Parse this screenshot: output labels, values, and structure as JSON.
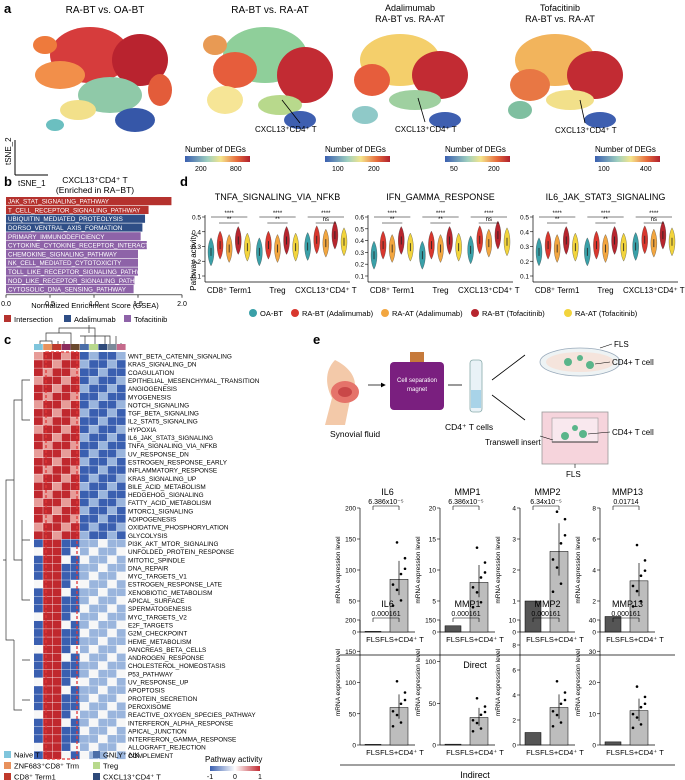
{
  "panel_labels": [
    "a",
    "b",
    "c",
    "d",
    "e"
  ],
  "panel_a": {
    "plots": [
      {
        "title1": "RA-BT vs. OA-BT",
        "title2": "",
        "annotation": "",
        "legend_title": "",
        "ticks": []
      },
      {
        "title1": "RA-BT vs. RA-AT",
        "title2": "",
        "annotation": "CXCL13⁺CD4⁺ T",
        "legend_title": "Number of DEGs",
        "ticks": [
          "200",
          "800"
        ]
      },
      {
        "title1": "Adalimumab",
        "title2": "RA-BT vs. RA-AT",
        "annotation": "CXCL13⁺CD4⁺ T",
        "legend_title": "Number of DEGs",
        "ticks": [
          "100",
          "200"
        ]
      },
      {
        "title1": "Tofacitinib",
        "title2": "RA-BT vs. RA-AT",
        "annotation": "CXCL13⁺CD4⁺ T",
        "legend_title": "Number of DEGs",
        "ticks": [
          "50",
          "200"
        ]
      }
    ],
    "extra_annotation": "CXCL13⁺CD4⁺ T",
    "extra_legend_title": "Number of DEGs",
    "extra_ticks": [
      "100",
      "400"
    ],
    "axis_y": "tSNE_2",
    "axis_x": "tSNE_1"
  },
  "panel_b": {
    "title_line1": "CXCL13⁺CD4⁺ T",
    "title_line2": "(Enriched in RA−BT)",
    "xlabel": "Normalized Enrichment Score (GSEA)",
    "legend": [
      {
        "label": "Intersection",
        "color": "#b5322e"
      },
      {
        "label": "Adalimumab",
        "color": "#2f4e86"
      },
      {
        "label": "Tofacitinib",
        "color": "#8e63a8"
      }
    ]
  },
  "panel_c": {
    "pathways": [
      "WNT_BETA_CATENIN_SIGNALING",
      "KRAS_SIGNALING_DN",
      "COAGULATION",
      "EPITHELIAL_MESENCHYMAL_TRANSITION",
      "ANGIOGENESIS",
      "MYOGENESIS",
      "NOTCH_SIGNALING",
      "TGF_BETA_SIGNALING",
      "IL2_STAT5_SIGNALING",
      "HYPOXIA",
      "IL6_JAK_STAT3_SIGNALING",
      "TNFA_SIGNALING_VIA_NFKB",
      "UV_RESPONSE_DN",
      "ESTROGEN_RESPONSE_EARLY",
      "INFLAMMATORY_RESPONSE",
      "KRAS_SIGNALING_UP",
      "BILE_ACID_METABOLISM",
      "HEDGEHOG_SIGNALING",
      "FATTY_ACID_METABOLISM",
      "MTORC1_SIGNALING",
      "ADIPOGENESIS",
      "OXIDATIVE_PHOSPHORYLATION",
      "GLYCOLYSIS",
      "PI3K_AKT_MTOR_SIGNALING",
      "UNFOLDED_PROTEIN_RESPONSE",
      "MITOTIC_SPINDLE",
      "DNA_REPAIR",
      "MYC_TARGETS_V1",
      "ESTROGEN_RESPONSE_LATE",
      "XENOBIOTIC_METABOLISM",
      "APICAL_SURFACE",
      "SPERMATOGENESIS",
      "MYC_TARGETS_V2",
      "E2F_TARGETS",
      "G2M_CHECKPOINT",
      "HEME_METABOLISM",
      "PANCREAS_BETA_CELLS",
      "ANDROGEN_RESPONSE",
      "CHOLESTEROL_HOMEOSTASIS",
      "P53_PATHWAY",
      "UV_RESPONSE_UP",
      "APOPTOSIS",
      "PROTEIN_SECRETION",
      "PEROXISOME",
      "REACTIVE_OXYGEN_SPECIES_PATHWAY",
      "INTERFERON_ALPHA_RESPONSE",
      "APICAL_JUNCTION",
      "INTERFERON_GAMMA_RESPONSE",
      "ALLOGRAFT_REJECTION",
      "COMPLEMENT"
    ],
    "celltypes": [
      {
        "label": "Naive T",
        "color": "#7fc5dc"
      },
      {
        "label": "ZNF683⁺CD8⁺ Trm",
        "color": "#e8915c"
      },
      {
        "label": "CD8⁺ Term1",
        "color": "#c0392b"
      },
      {
        "label": "CD8⁺ Tem2",
        "color": "#8b2c5d"
      },
      {
        "label": "NKT",
        "color": "#6b4a2f"
      },
      {
        "label": "GNLY⁺ NK",
        "color": "#4b6ea8"
      },
      {
        "label": "Treg",
        "color": "#b8d98c"
      },
      {
        "label": "CXCL13⁺CD4⁺ T",
        "color": "#2e4a7a"
      },
      {
        "label": "Proliferating CD8⁺ T",
        "color": "#7b8a9a"
      },
      {
        "label": "Proliferating NK",
        "color": "#c56a8b"
      }
    ],
    "legend_title": "Pathway activity",
    "legend_ticks": [
      "-1",
      "0",
      "1"
    ]
  },
  "panel_d": {
    "ylabel": "Pathway activity",
    "plots": [
      {
        "title": "TNFA_SIGNALING_VIA_NFKB",
        "yticks": [
          "0.1",
          "0.2",
          "0.3",
          "0.4",
          "0.5"
        ]
      },
      {
        "title": "IFN_GAMMA_RESPONSE",
        "yticks": [
          "0.1",
          "0.2",
          "0.3",
          "0.4",
          "0.5",
          "0.6"
        ]
      },
      {
        "title": "IL6_JAK_STAT3_SIGNALING",
        "yticks": [
          "0.1",
          "0.2",
          "0.3",
          "0.4",
          "0.5"
        ]
      }
    ],
    "xcats": [
      "CD8⁺ Term1",
      "Treg",
      "CXCL13⁺CD4⁺ T"
    ],
    "sig": {
      "ns": "ns",
      "star2": "**",
      "star4": "****"
    },
    "groups": [
      {
        "label": "OA-BT",
        "color": "#3aa0a8"
      },
      {
        "label": "RA-BT (Adalimumab)",
        "color": "#d8372e"
      },
      {
        "label": "RA-AT (Adalimumab)",
        "color": "#f2a640"
      },
      {
        "label": "RA-BT (Tofacitinib)",
        "color": "#b6252e"
      },
      {
        "label": "RA-AT (Tofacitinib)",
        "color": "#f2d43c"
      }
    ]
  },
  "panel_e": {
    "schematic": {
      "synovial_fluid": "Synovial fluid",
      "magnet_line1": "Cell separation",
      "magnet_line2": "magnet",
      "cd4_cells": "CD4⁺ T cells",
      "fls": "FLS",
      "cd4_cell_top": "CD4+ T cell",
      "transwell": "Transwell insert",
      "cd4_cell_bottom": "CD4+ T cell",
      "fls_bottom": "FLS"
    },
    "ylabel": "mRNA expression level",
    "xcats": [
      "FLS",
      "FLS+CD4⁺ T"
    ],
    "direct_label": "Direct",
    "indirect_label": "Indirect",
    "direct": [
      {
        "gene": "IL6",
        "pvalue": "6.386x10⁻⁵",
        "yticks": [
          "0",
          "50",
          "100",
          "150",
          "200"
        ]
      },
      {
        "gene": "MMP1",
        "pvalue": "6.386x10⁻⁵",
        "yticks": [
          "0",
          "5",
          "10",
          "15",
          "20"
        ]
      },
      {
        "gene": "MMP2",
        "pvalue": "6.34x10⁻⁵",
        "yticks": [
          "0",
          "1",
          "2",
          "3",
          "4"
        ]
      },
      {
        "gene": "MMP13",
        "pvalue": "0.01714",
        "yticks": [
          "0",
          "2",
          "4",
          "6",
          "8"
        ]
      }
    ],
    "indirect": [
      {
        "gene": "IL6",
        "pvalue": "0.000161",
        "yticks": [
          "0",
          "50",
          "100",
          "150",
          "200"
        ]
      },
      {
        "gene": "MMP1",
        "pvalue": "0.000161",
        "yticks": [
          "0",
          "50",
          "100",
          "150"
        ]
      },
      {
        "gene": "MMP2",
        "pvalue": "0.000161",
        "yticks": [
          "0",
          "2",
          "4",
          "6",
          "8",
          "10"
        ]
      },
      {
        "gene": "MMP13",
        "pvalue": "0.000161",
        "yticks": [
          "0",
          "10",
          "20",
          "30",
          "40"
        ]
      }
    ]
  },
  "chart_data": [
    {
      "type": "bar",
      "panel": "b",
      "orientation": "horizontal",
      "title": "CXCL13⁺CD4⁺ T (Enriched in RA−BT)",
      "xlabel": "Normalized Enrichment Score (GSEA)",
      "xlim": [
        0,
        2.0
      ],
      "xticks": [
        "0.0",
        "0.5",
        "1.0",
        "1.5",
        "2.0"
      ],
      "categories": [
        "JAK_STAT_SIGNALING_PATHWAY",
        "T_CELL_RECEPTOR_SIGNALING_PATHWAY",
        "UBIQUITIN_MEDIATED_PROTEOLYSIS",
        "DORSO_VENTRAL_AXIS_FORMATION",
        "PRIMARY_IMMUNODEFICIENCY",
        "CYTOKINE_CYTOKINE_RECEPTOR_INTERACTION",
        "CHEMOKINE_SIGNALING_PATHWAY",
        "NK_CELL_MEDIATED_CYTOTOXICITY",
        "TOLL_LIKE_RECEPTOR_SIGNALING_PATHWAY",
        "NOD_LIKE_RECEPTOR_SIGNALING_PATHWAY",
        "CYTOSOLIC_DNA_SENSING_PATHWAY"
      ],
      "values": [
        1.88,
        1.62,
        1.58,
        1.55,
        1.53,
        1.6,
        1.5,
        1.5,
        1.5,
        1.46,
        1.45
      ],
      "groups": [
        "Intersection",
        "Intersection",
        "Adalimumab",
        "Adalimumab",
        "Tofacitinib",
        "Tofacitinib",
        "Tofacitinib",
        "Tofacitinib",
        "Tofacitinib",
        "Tofacitinib",
        "Tofacitinib"
      ]
    },
    {
      "type": "bar",
      "panel": "e-direct",
      "categories": [
        "FLS",
        "FLS+CD4⁺ T"
      ],
      "series": [
        {
          "name": "IL6",
          "values": [
            1,
            85
          ]
        },
        {
          "name": "MMP1",
          "values": [
            1,
            8
          ]
        },
        {
          "name": "MMP2",
          "values": [
            1,
            2.6
          ]
        },
        {
          "name": "MMP13",
          "values": [
            1,
            3.3
          ]
        }
      ]
    },
    {
      "type": "bar",
      "panel": "e-indirect",
      "categories": [
        "FLS",
        "FLS+CD4⁺ T"
      ],
      "series": [
        {
          "name": "IL6",
          "values": [
            1,
            60
          ]
        },
        {
          "name": "MMP1",
          "values": [
            1,
            33
          ]
        },
        {
          "name": "MMP2",
          "values": [
            1,
            3.0
          ]
        },
        {
          "name": "MMP13",
          "values": [
            1,
            11
          ]
        }
      ]
    }
  ]
}
